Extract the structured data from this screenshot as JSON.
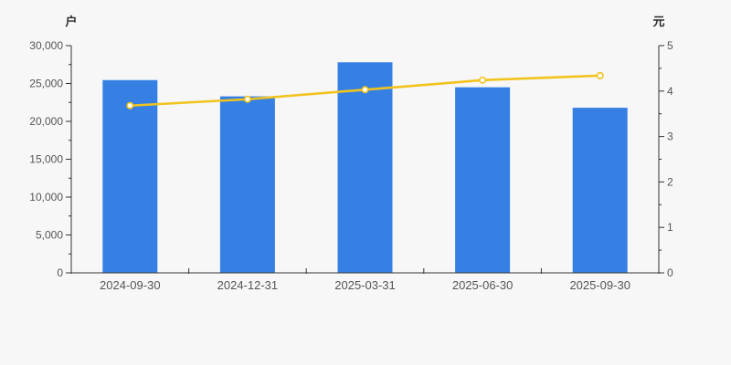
{
  "chart_data": {
    "type": "combo",
    "categories": [
      "2024-09-30",
      "2024-12-31",
      "2025-03-31",
      "2025-06-30",
      "2025-09-30"
    ],
    "series": [
      {
        "id": "bars",
        "type": "bar",
        "axis": "left",
        "values": [
          25450,
          23300,
          27800,
          24500,
          21800
        ],
        "color": "#3680e4"
      },
      {
        "id": "line",
        "type": "line",
        "axis": "right",
        "values": [
          3.68,
          3.82,
          4.03,
          4.24,
          4.34
        ],
        "color": "#f2c31d",
        "marker": {
          "fill": "#ffffff",
          "stroke": "#f2c31d"
        }
      }
    ],
    "left_axis": {
      "unit_label": "户",
      "min": 0,
      "max": 30000,
      "tick_step": 5000,
      "tick_labels": [
        "0",
        "5,000",
        "10,000",
        "15,000",
        "20,000",
        "25,000",
        "30,000"
      ]
    },
    "right_axis": {
      "unit_label": "元",
      "min": 0,
      "max": 5,
      "tick_step": 1,
      "tick_labels": [
        "0",
        "1",
        "2",
        "3",
        "4",
        "5"
      ]
    },
    "grid": false,
    "legend": null,
    "title": "",
    "colors": {
      "background": "#f7f7f7",
      "axis_line": "#333333",
      "tick_text": "#555555",
      "unit_text": "#2b2b2b"
    }
  }
}
